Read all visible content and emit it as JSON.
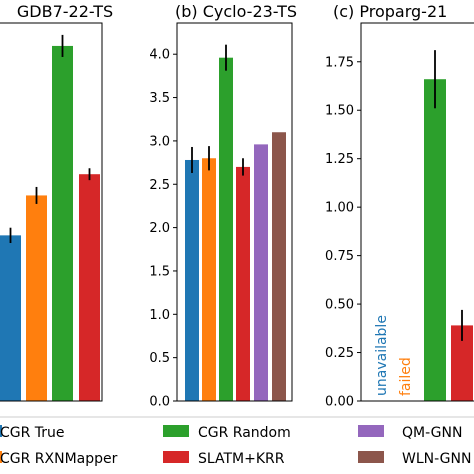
{
  "chart_data": [
    {
      "type": "bar",
      "title": "GDB7-22-TS",
      "bars": [
        {
          "series": "CGR True",
          "value": 1.95,
          "error": 0.09,
          "color_key": "blue"
        },
        {
          "series": "CGR RXNMapper",
          "value": 2.42,
          "error": 0.1,
          "color_key": "orange"
        },
        {
          "series": "CGR Random",
          "value": 4.18,
          "error": 0.13,
          "color_key": "green"
        },
        {
          "series": "SLATM+KRR",
          "value": 2.67,
          "error": 0.07,
          "color_key": "red"
        }
      ]
    },
    {
      "type": "bar",
      "title": "(b) Cyclo-23-TS",
      "ylim": [
        0,
        4.36
      ],
      "yticks": [
        "0.0",
        "0.5",
        "1.0",
        "1.5",
        "2.0",
        "2.5",
        "3.0",
        "3.5",
        "4.0"
      ],
      "bars": [
        {
          "series": "CGR True",
          "value": 2.78,
          "error": 0.15,
          "color_key": "blue"
        },
        {
          "series": "CGR RXNMapper",
          "value": 2.8,
          "error": 0.14,
          "color_key": "orange"
        },
        {
          "series": "CGR Random",
          "value": 3.96,
          "error": 0.15,
          "color_key": "green"
        },
        {
          "series": "SLATM+KRR",
          "value": 2.7,
          "error": 0.1,
          "color_key": "red"
        },
        {
          "series": "QM-GNN",
          "value": 2.96,
          "error": 0,
          "color_key": "purple"
        },
        {
          "series": "WLN-GNN",
          "value": 3.1,
          "error": 0,
          "color_key": "brown"
        }
      ]
    },
    {
      "type": "bar",
      "title": "(c) Proparg-21",
      "ylim": [
        0,
        1.95
      ],
      "yticks": [
        "0.00",
        "0.25",
        "0.50",
        "0.75",
        "1.00",
        "1.25",
        "1.50",
        "1.75"
      ],
      "bars": [
        {
          "series": "CGR Random",
          "value": 1.66,
          "error": 0.15,
          "color_key": "green"
        },
        {
          "series": "SLATM+KRR",
          "value": 0.39,
          "error": 0.08,
          "color_key": "red"
        }
      ],
      "annotations": [
        {
          "text": "unavailable",
          "color_key": "blue"
        },
        {
          "text": "failed",
          "color_key": "orange"
        }
      ]
    }
  ],
  "legend": [
    {
      "label": "CGR True",
      "color_key": "blue"
    },
    {
      "label": "CGR RXNMapper",
      "color_key": "orange"
    },
    {
      "label": "CGR Random",
      "color_key": "green"
    },
    {
      "label": "SLATM+KRR",
      "color_key": "red"
    },
    {
      "label": "QM-GNN",
      "color_key": "purple"
    },
    {
      "label": "WLN-GNN",
      "color_key": "brown"
    }
  ],
  "colors": {
    "blue": "#1f77b4",
    "orange": "#ff7f0e",
    "green": "#2ca02c",
    "red": "#d62728",
    "purple": "#9467bd",
    "brown": "#8c564b"
  }
}
